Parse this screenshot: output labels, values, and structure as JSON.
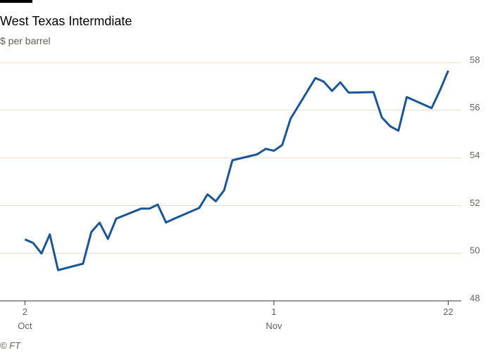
{
  "chart_data": {
    "type": "line",
    "title": "West Texas Intermdiate",
    "subtitle": "$ per barrel",
    "source": "© FT",
    "x": [
      "10-02",
      "10-03",
      "10-04",
      "10-05",
      "10-06",
      "10-09",
      "10-10",
      "10-11",
      "10-12",
      "10-13",
      "10-16",
      "10-17",
      "10-18",
      "10-19",
      "10-20",
      "10-23",
      "10-24",
      "10-25",
      "10-26",
      "10-27",
      "10-30",
      "10-31",
      "11-01",
      "11-02",
      "11-03",
      "11-06",
      "11-07",
      "11-08",
      "11-09",
      "11-10",
      "11-13",
      "11-14",
      "11-15",
      "11-16",
      "11-17",
      "11-20",
      "11-21",
      "11-22"
    ],
    "series": [
      {
        "name": "West Texas Intermdiate",
        "color": "#1a5596",
        "values": [
          50.58,
          50.43,
          49.99,
          50.79,
          49.29,
          49.56,
          50.89,
          51.28,
          50.6,
          51.45,
          51.87,
          51.87,
          52.04,
          51.29,
          51.45,
          51.9,
          52.47,
          52.18,
          52.64,
          53.9,
          54.15,
          54.38,
          54.3,
          54.54,
          55.64,
          57.35,
          57.2,
          56.81,
          57.17,
          56.74,
          56.76,
          55.7,
          55.33,
          55.14,
          56.55,
          56.09,
          56.83,
          57.66
        ]
      }
    ],
    "xlim": [
      "09-29",
      "11-24"
    ],
    "xticks": [
      {
        "value": "10-02",
        "label": "2"
      },
      {
        "value": "11-01",
        "label": "1"
      },
      {
        "value": "11-22",
        "label": "22"
      }
    ],
    "x_month_labels": [
      {
        "value": "10-02",
        "label": "Oct"
      },
      {
        "value": "11-01",
        "label": "Nov"
      }
    ],
    "ylim": [
      48,
      58
    ],
    "yticks": [
      48,
      50,
      52,
      54,
      56,
      58
    ],
    "grid": true
  }
}
